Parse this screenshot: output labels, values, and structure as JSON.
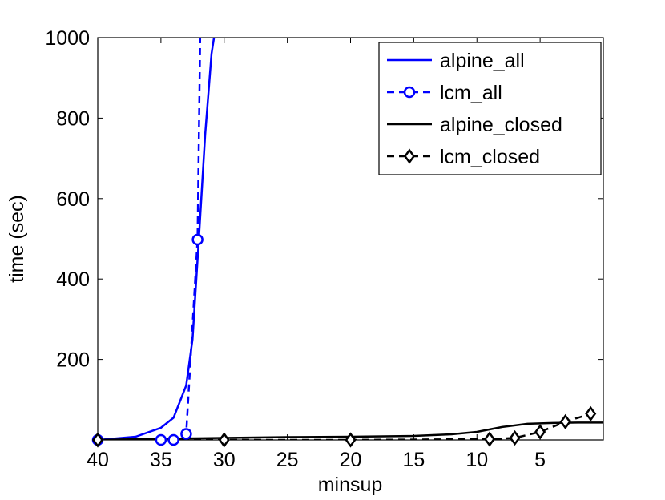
{
  "chart_data": {
    "type": "line",
    "title": "",
    "xlabel": "minsup",
    "ylabel": "time (sec)",
    "xlim": [
      40,
      0
    ],
    "x_reversed": true,
    "ylim": [
      0,
      1000
    ],
    "xticks": [
      40,
      35,
      30,
      25,
      20,
      15,
      10,
      5
    ],
    "xtick_labels": [
      "40",
      "35",
      "30",
      "25",
      "20",
      "15",
      "10",
      "5"
    ],
    "yticks": [
      200,
      400,
      600,
      800,
      1000
    ],
    "ytick_labels": [
      "200",
      "400",
      "600",
      "800",
      "1000"
    ],
    "grid": false,
    "legend_position": "top-right",
    "series": [
      {
        "name": "alpine_all",
        "color": "#0000ff",
        "line": "solid",
        "marker": "none",
        "x": [
          40,
          37,
          35,
          34,
          33,
          32.5,
          32,
          31.5,
          31,
          30.8
        ],
        "y": [
          0,
          8,
          30,
          55,
          135,
          250,
          500,
          760,
          960,
          1000
        ]
      },
      {
        "name": "lcm_all",
        "color": "#0000ff",
        "line": "dashed",
        "marker": "circle",
        "x": [
          40,
          35,
          34,
          33,
          32.1,
          31.9
        ],
        "y": [
          0,
          0,
          0,
          15,
          498,
          1000
        ],
        "marker_count": 5
      },
      {
        "name": "alpine_closed",
        "color": "#000000",
        "line": "solid",
        "marker": "none",
        "x": [
          40,
          35,
          30,
          25,
          20,
          15,
          12,
          10,
          8,
          6,
          4,
          2,
          0
        ],
        "y": [
          0,
          3,
          5,
          7,
          8,
          10,
          14,
          20,
          32,
          40,
          42,
          43,
          43
        ]
      },
      {
        "name": "lcm_closed",
        "color": "#000000",
        "line": "dashed",
        "marker": "diamond",
        "x": [
          40,
          30,
          20,
          9,
          7,
          5,
          3,
          1
        ],
        "y": [
          0,
          0,
          0,
          2,
          5,
          20,
          45,
          65
        ]
      }
    ]
  }
}
